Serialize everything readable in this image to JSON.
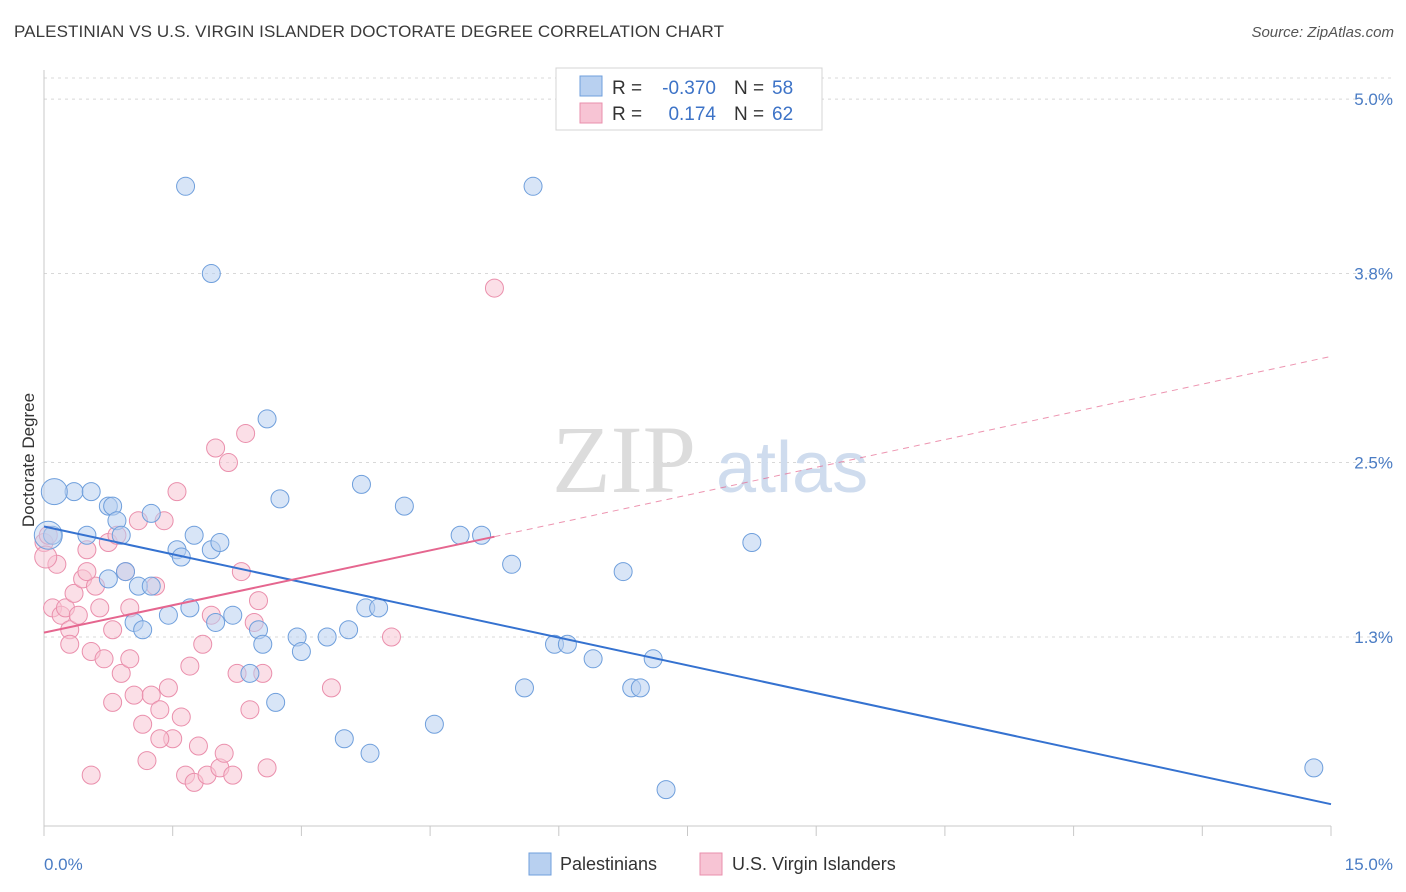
{
  "header": {
    "title": "PALESTINIAN VS U.S. VIRGIN ISLANDER DOCTORATE DEGREE CORRELATION CHART",
    "source": "Source: ZipAtlas.com"
  },
  "watermark": {
    "zip": "ZIP",
    "atlas": "atlas"
  },
  "colors": {
    "blue_fill": "#b8d0f0",
    "blue_stroke": "#6f9fdc",
    "blue_line": "#3572d0",
    "pink_fill": "#f7c4d4",
    "pink_stroke": "#ea8fac",
    "pink_line": "#e5668f",
    "grid": "#d8d8d8",
    "tick_text": "#4a7cc4"
  },
  "stats": {
    "r_label": "R =",
    "n_label": "N =",
    "rows": [
      {
        "r": "-0.370",
        "n": "58"
      },
      {
        "r": "0.174",
        "n": "62"
      }
    ]
  },
  "legend": {
    "items": [
      "Palestinians",
      "U.S. Virgin Islanders"
    ]
  },
  "chart_data": {
    "type": "scatter",
    "title": "PALESTINIAN VS U.S. VIRGIN ISLANDER DOCTORATE DEGREE CORRELATION CHART",
    "xlabel": "",
    "ylabel": "Doctorate Degree",
    "xlim": [
      0,
      15
    ],
    "ylim": [
      0,
      5.2
    ],
    "x_tick_labels": [
      "0.0%",
      "15.0%"
    ],
    "y_ticks": [
      1.3,
      2.5,
      3.8,
      5.0
    ],
    "y_tick_labels": [
      "1.3%",
      "2.5%",
      "3.8%",
      "5.0%"
    ],
    "grid": true,
    "legend_position": "bottom-center",
    "series": [
      {
        "name": "Palestinians",
        "color": "#b8d0f0",
        "points": [
          [
            0.1,
            2.0
          ],
          [
            0.35,
            2.3
          ],
          [
            0.5,
            2.0
          ],
          [
            0.55,
            2.3
          ],
          [
            0.75,
            1.7
          ],
          [
            0.75,
            2.2
          ],
          [
            0.8,
            2.2
          ],
          [
            0.85,
            2.1
          ],
          [
            0.9,
            2.0
          ],
          [
            0.95,
            1.75
          ],
          [
            1.05,
            1.4
          ],
          [
            1.15,
            1.35
          ],
          [
            1.1,
            1.65
          ],
          [
            1.25,
            2.15
          ],
          [
            1.25,
            1.65
          ],
          [
            1.45,
            1.45
          ],
          [
            1.55,
            1.9
          ],
          [
            1.6,
            1.85
          ],
          [
            1.65,
            4.4
          ],
          [
            1.7,
            1.5
          ],
          [
            1.75,
            2.0
          ],
          [
            1.95,
            1.9
          ],
          [
            1.95,
            3.8
          ],
          [
            2.0,
            1.4
          ],
          [
            2.05,
            1.95
          ],
          [
            2.2,
            1.45
          ],
          [
            2.4,
            1.05
          ],
          [
            2.5,
            1.35
          ],
          [
            2.55,
            1.25
          ],
          [
            2.6,
            2.8
          ],
          [
            2.7,
            0.85
          ],
          [
            2.75,
            2.25
          ],
          [
            2.95,
            1.3
          ],
          [
            3.0,
            1.2
          ],
          [
            3.3,
            1.3
          ],
          [
            3.5,
            0.6
          ],
          [
            3.55,
            1.35
          ],
          [
            3.7,
            2.35
          ],
          [
            3.75,
            1.5
          ],
          [
            3.8,
            0.5
          ],
          [
            3.9,
            1.5
          ],
          [
            4.2,
            2.2
          ],
          [
            4.55,
            0.7
          ],
          [
            4.85,
            2.0
          ],
          [
            5.1,
            2.0
          ],
          [
            5.45,
            1.8
          ],
          [
            5.6,
            0.95
          ],
          [
            5.7,
            4.4
          ],
          [
            5.95,
            1.25
          ],
          [
            6.1,
            1.25
          ],
          [
            6.4,
            1.15
          ],
          [
            6.75,
            1.75
          ],
          [
            6.85,
            0.95
          ],
          [
            6.95,
            0.95
          ],
          [
            7.1,
            1.15
          ],
          [
            7.25,
            0.25
          ],
          [
            8.25,
            1.95
          ],
          [
            14.8,
            0.4
          ]
        ]
      },
      {
        "name": "U.S. Virgin Islanders",
        "color": "#f7c4d4",
        "points": [
          [
            0.0,
            1.95
          ],
          [
            0.05,
            2.0
          ],
          [
            0.1,
            1.5
          ],
          [
            0.15,
            1.8
          ],
          [
            0.2,
            1.45
          ],
          [
            0.25,
            1.5
          ],
          [
            0.3,
            1.35
          ],
          [
            0.35,
            1.6
          ],
          [
            0.4,
            1.45
          ],
          [
            0.45,
            1.7
          ],
          [
            0.5,
            1.9
          ],
          [
            0.55,
            1.2
          ],
          [
            0.6,
            1.65
          ],
          [
            0.65,
            1.5
          ],
          [
            0.7,
            1.15
          ],
          [
            0.75,
            1.95
          ],
          [
            0.8,
            0.85
          ],
          [
            0.85,
            2.0
          ],
          [
            0.9,
            1.05
          ],
          [
            0.95,
            1.75
          ],
          [
            1.0,
            1.15
          ],
          [
            1.05,
            0.9
          ],
          [
            1.1,
            2.1
          ],
          [
            1.15,
            0.7
          ],
          [
            1.2,
            0.45
          ],
          [
            1.25,
            0.9
          ],
          [
            1.3,
            1.65
          ],
          [
            1.35,
            0.8
          ],
          [
            1.4,
            2.1
          ],
          [
            1.45,
            0.95
          ],
          [
            1.5,
            0.6
          ],
          [
            1.55,
            2.3
          ],
          [
            1.6,
            0.75
          ],
          [
            1.65,
            0.35
          ],
          [
            1.7,
            1.1
          ],
          [
            1.75,
            0.3
          ],
          [
            1.8,
            0.55
          ],
          [
            1.85,
            1.25
          ],
          [
            1.9,
            0.35
          ],
          [
            1.95,
            1.45
          ],
          [
            2.0,
            2.6
          ],
          [
            2.05,
            0.4
          ],
          [
            2.1,
            0.5
          ],
          [
            2.15,
            2.5
          ],
          [
            2.2,
            0.35
          ],
          [
            2.25,
            1.05
          ],
          [
            2.3,
            1.75
          ],
          [
            2.35,
            2.7
          ],
          [
            2.4,
            0.8
          ],
          [
            2.45,
            1.4
          ],
          [
            2.5,
            1.55
          ],
          [
            2.55,
            1.05
          ],
          [
            2.6,
            0.4
          ],
          [
            0.5,
            1.75
          ],
          [
            0.8,
            1.35
          ],
          [
            1.0,
            1.5
          ],
          [
            3.35,
            0.95
          ],
          [
            0.55,
            0.35
          ],
          [
            0.3,
            1.25
          ],
          [
            1.35,
            0.6
          ],
          [
            4.05,
            1.3
          ],
          [
            5.25,
            3.7
          ]
        ]
      }
    ],
    "trend_lines": [
      {
        "series": "Palestinians",
        "from": [
          0,
          2.06
        ],
        "to": [
          15,
          0.15
        ]
      },
      {
        "series": "U.S. Virgin Islanders",
        "solid_from": [
          0,
          1.33
        ],
        "solid_to": [
          5.25,
          1.99
        ],
        "dashed_to": [
          15,
          3.23
        ]
      }
    ]
  }
}
